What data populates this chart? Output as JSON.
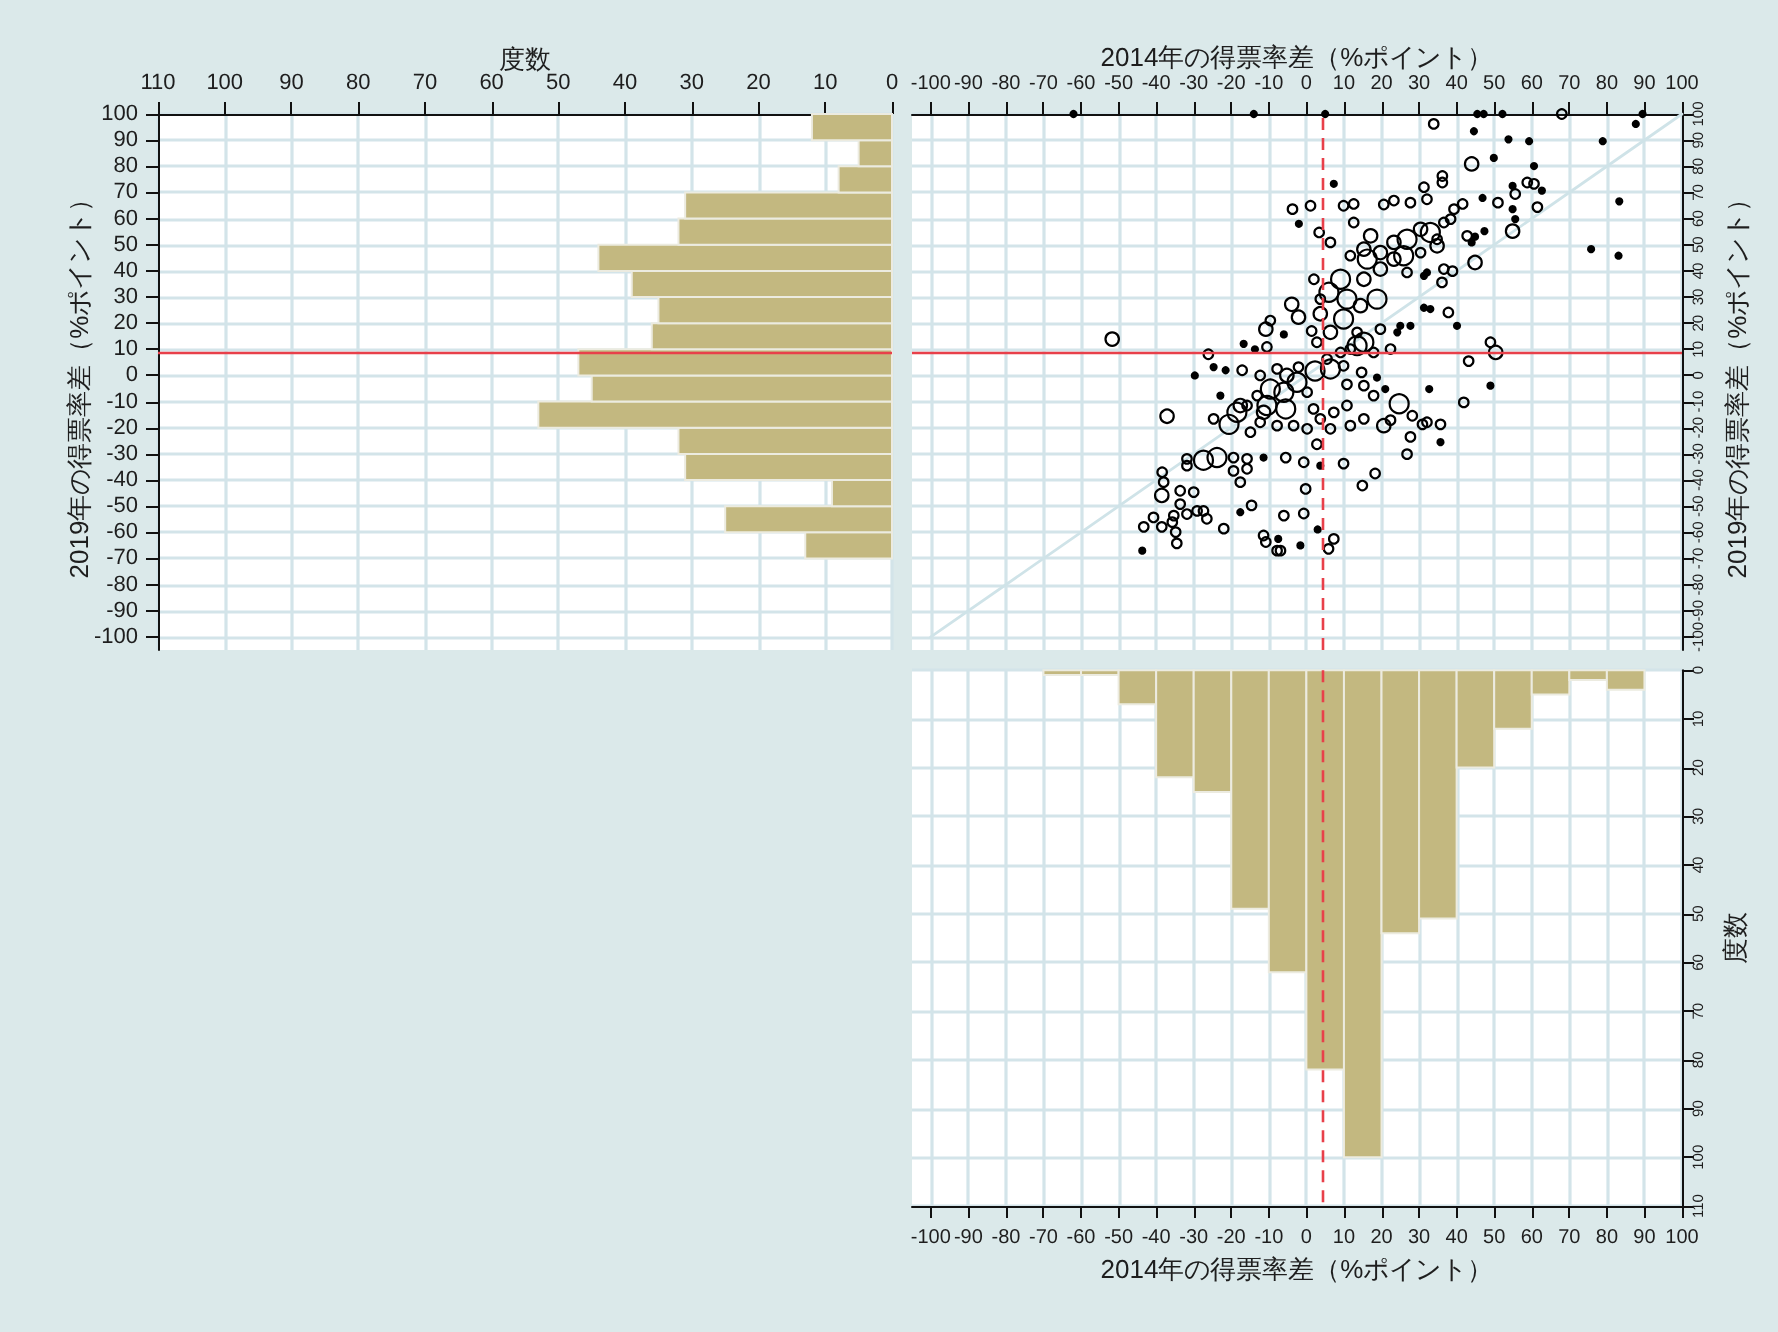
{
  "chart_data": [
    {
      "type": "histogram",
      "orientation": "horizontal",
      "color": "#c3b880",
      "bins": [
        -70,
        -60,
        -50,
        -40,
        -30,
        -20,
        -10,
        0,
        10,
        20,
        30,
        40,
        50,
        60,
        70,
        80,
        90,
        100
      ],
      "values": [
        13,
        25,
        9,
        31,
        32,
        53,
        45,
        47,
        36,
        35,
        39,
        44,
        32,
        31,
        8,
        5,
        12
      ],
      "xlabel": "度数",
      "ylabel": "2019年の得票率差（%ポイント）",
      "xlim": [
        110,
        0
      ],
      "xticks": [
        110,
        100,
        90,
        80,
        70,
        60,
        50,
        40,
        30,
        20,
        10,
        0
      ],
      "ylim": [
        -105,
        100
      ],
      "yticks": [
        -100,
        -90,
        -80,
        -70,
        -60,
        -50,
        -40,
        -30,
        -20,
        -10,
        0,
        10,
        20,
        30,
        40,
        50,
        60,
        70,
        80,
        90,
        100
      ],
      "grid": true,
      "ref_lines": [
        {
          "axis": "y",
          "value": 8.5,
          "color": "#e8404a"
        }
      ]
    },
    {
      "type": "bubble",
      "xlabel": "2014年の得票率差（%ポイント）",
      "ylabel": "2019年の得票率差（%ポイント）",
      "xlim": [
        -105,
        100
      ],
      "xticks": [
        -100,
        -90,
        -80,
        -70,
        -60,
        -50,
        -40,
        -30,
        -20,
        -10,
        0,
        10,
        20,
        30,
        40,
        50,
        60,
        70,
        80,
        90,
        100
      ],
      "ylim": [
        -105,
        100
      ],
      "yticks": [
        -100,
        -90,
        -80,
        -70,
        -60,
        -50,
        -40,
        -30,
        -20,
        -10,
        0,
        10,
        20,
        30,
        40,
        50,
        60,
        70,
        80,
        90,
        100
      ],
      "grid": true,
      "ref_lines": [
        {
          "axis": "y",
          "value": 8.5,
          "color": "#e8404a"
        },
        {
          "axis": "x",
          "value": 4.3,
          "color": "#e8404a",
          "line_style": "dashed"
        }
      ],
      "series": [
        {
          "type": "line",
          "color": "#cfe3e8",
          "x": [
            -100,
            100
          ],
          "values": [
            -100,
            100
          ]
        },
        {
          "color": "#000000",
          "marker": "circle",
          "x": [
            -14,
            -62,
            5,
            7.3,
            -3.7,
            1.1,
            -2,
            3.4,
            6.4,
            2,
            6,
            3.7,
            -3.9,
            -2.1,
            -10.8,
            -6,
            -9.6,
            1.4,
            2.8,
            -51.7,
            -26.1,
            -16.7,
            -13.7,
            -10.5,
            -29.7,
            -24.7,
            -21.5,
            -17.1,
            -12.3,
            -7.8,
            -5.2,
            -2.1,
            2.3,
            5.5,
            -22.9,
            -17.6,
            -13.1,
            -9.6,
            -6,
            -2.5,
            0.2,
            -5.5,
            -10.5,
            -12.3,
            -20.6,
            -37.1,
            -24.7,
            -7.8,
            -3.4,
            0.2,
            -14.9,
            -23.8,
            -27.4,
            -31.8,
            -19.4,
            -15.8,
            -11.4,
            -5.5,
            -31.8,
            -19.4,
            -15.8,
            -0.7,
            3.7,
            -38.4,
            -38,
            -38.5,
            -33.6,
            -30,
            -17.6,
            -0.2,
            -33.6,
            -29.1,
            -40.7,
            -35.3,
            -31.8,
            -27.4,
            -26.5,
            -17.6,
            -14.6,
            -6,
            -0.7,
            -43.3,
            -38.5,
            -35.7,
            -34.8,
            -34.5,
            -43.7,
            -22,
            -11.4,
            -10.8,
            -7.8,
            -6.9,
            -1.6,
            -7.5,
            3,
            7.3,
            -18.5,
            -11.4,
            -15.8,
            45.5,
            47.2,
            52.2,
            68,
            89.5,
            33.9,
            87.7,
            44.6,
            53.8,
            59.3,
            78.9,
            44,
            49.9,
            60.6,
            36.2,
            36.2,
            31.3,
            9.9,
            12.6,
            20.6,
            23.3,
            27.7,
            32.1,
            41.6,
            46.9,
            51,
            54.9,
            55.6,
            58.8,
            60.6,
            62.7,
            54.9,
            61.5,
            55.6,
            54.9,
            47.4,
            44.9,
            44,
            44.9,
            75.8,
            83.1,
            83.3,
            12.6,
            17.1,
            15.3,
            11.7,
            16.2,
            19.7,
            23.3,
            26.8,
            30.4,
            33,
            36.6,
            38.4,
            39.3,
            34.8,
            30.4,
            25.9,
            23.3,
            19.7,
            26.8,
            32.1,
            36.6,
            38.9,
            36.1,
            31.3,
            33,
            37.8,
            40.1,
            9.1,
            10.8,
            15.3,
            18.8,
            14.4,
            9.9,
            6.4,
            3.7,
            13.5,
            19.7,
            24.2,
            27.7,
            13.5,
            15.3,
            17.9,
            22.4,
            11.7,
            9.1,
            6.4,
            9.9,
            14.7,
            18.8,
            10.8,
            15.3,
            21,
            17.9,
            24.7,
            28.2,
            32.1,
            35.7,
            27.7,
            26.8,
            35.7,
            15.3,
            11.7,
            20.6,
            22.4,
            7.3,
            10.8,
            1.9,
            3.7,
            6.4,
            2.8,
            9.9,
            18.3,
            14.9,
            5.9,
            32.7,
            41.9,
            43.2,
            50.4,
            49,
            49,
            30.9,
            25,
            31.3,
            34.8,
            42.8
          ],
          "values": [
            100,
            100,
            100,
            73.3,
            63.6,
            64.9,
            58,
            54.7,
            50.9,
            36.8,
            31.8,
            29.2,
            27.2,
            22.3,
            17.7,
            15.7,
            21,
            17,
            12.7,
            13.9,
            8.1,
            12.1,
            10,
            10.9,
            0,
            3.2,
            2,
            2,
            0,
            2.5,
            0,
            3.2,
            1.7,
            6.3,
            -7.7,
            -11.5,
            -7.7,
            -5.2,
            -6.4,
            -2.6,
            -6.4,
            -12.8,
            -11.5,
            -17.9,
            -18.7,
            -15.6,
            -16.6,
            -19.2,
            -19.2,
            -20.4,
            -21.7,
            -31.4,
            -32.4,
            -31.9,
            -31.4,
            -31.9,
            -31.4,
            -31.4,
            -34.5,
            -36.5,
            -35.7,
            -33.2,
            -34.5,
            -37,
            -40.8,
            -45.9,
            -44.1,
            -44.6,
            -40.8,
            -43.4,
            -49.2,
            -51.8,
            -54.3,
            -53.6,
            -53,
            -51.8,
            -54.8,
            -52.3,
            -49.7,
            -53.6,
            -52.8,
            -57.9,
            -57.9,
            -56.1,
            -59.9,
            -64.2,
            -67,
            -58.6,
            -61.2,
            -63.7,
            -67,
            -67,
            -65,
            -62.5,
            -58.9,
            -62.5,
            -14.1,
            -14.1,
            -11.5,
            100,
            100,
            100,
            100,
            100,
            96.2,
            96.2,
            93.4,
            90.3,
            89.6,
            89.6,
            80.9,
            83.2,
            80.1,
            76.3,
            73.8,
            72,
            64.9,
            65.6,
            65.4,
            66.9,
            66.1,
            67.4,
            65.6,
            67.9,
            66.1,
            72.5,
            69.4,
            73.8,
            73.3,
            70.7,
            63.6,
            64.4,
            59.8,
            55.2,
            55.2,
            53.1,
            50.9,
            43.2,
            48.3,
            45.8,
            66.6,
            58.5,
            53.4,
            48.3,
            45.8,
            44.5,
            47,
            50.9,
            52.1,
            55.9,
            54.7,
            58.5,
            59.8,
            63.6,
            49.6,
            47,
            45.8,
            44.5,
            40.7,
            39.4,
            39.4,
            40.7,
            39.9,
            35.6,
            25.9,
            25.4,
            24.1,
            19,
            36.8,
            29.2,
            36.8,
            29.2,
            26.7,
            21.6,
            16.5,
            23.6,
            16.5,
            17.7,
            16.5,
            19,
            11.4,
            12.7,
            8.8,
            10.1,
            10.1,
            8.8,
            2.5,
            3.7,
            1.2,
            -0.8,
            -3.4,
            -3.9,
            -5.2,
            -7.7,
            -10.8,
            -15.4,
            -17.9,
            -18.7,
            -23.5,
            -30.1,
            -25.5,
            -16.6,
            -19.2,
            -19.2,
            -17.1,
            -14.1,
            -11.5,
            -12.8,
            -16.6,
            -20.4,
            -26.3,
            -33.7,
            -37.5,
            -42.1,
            -66.3,
            -5.2,
            -10.3,
            5.5,
            8.8,
            12.7,
            -3.9,
            -18.7,
            19,
            38.1,
            52.1,
            53.4
          ],
          "sizes": [
            0.1,
            0.1,
            0.1,
            0.1,
            0.25,
            0.25,
            0.1,
            0.25,
            0.25,
            0.25,
            1,
            0.25,
            0.5,
            0.5,
            0.5,
            0.1,
            0.25,
            0.25,
            0.25,
            0.5,
            0.25,
            0.1,
            0.1,
            0.25,
            0.1,
            0.1,
            0.1,
            0.25,
            0.25,
            0.25,
            0.5,
            0.25,
            1,
            0.25,
            0.1,
            0.5,
            0.25,
            1,
            1,
            1,
            0.25,
            1,
            1,
            0.25,
            1,
            0.5,
            0.25,
            0.25,
            0.25,
            0.25,
            0.25,
            1,
            1,
            0.25,
            0.25,
            0.25,
            0.1,
            0.25,
            0.25,
            0.25,
            0.25,
            0.25,
            0.1,
            0.25,
            0.25,
            0.5,
            0.25,
            0.25,
            0.25,
            0.25,
            0.25,
            0.25,
            0.25,
            0.25,
            0.25,
            0.25,
            0.25,
            0.1,
            0.25,
            0.25,
            0.25,
            0.25,
            0.25,
            0.25,
            0.25,
            0.25,
            0.1,
            0.25,
            0.25,
            0.25,
            0.25,
            0.25,
            0.1,
            0.1,
            0.1,
            0.25,
            1,
            0.5,
            0.25,
            0.1,
            0.1,
            0.1,
            0.25,
            0.1,
            0.25,
            0.1,
            0.1,
            0.1,
            0.1,
            0.1,
            0.5,
            0.1,
            0.1,
            0.25,
            0.25,
            0.25,
            0.25,
            0.25,
            0.25,
            0.25,
            0.25,
            0.25,
            0.25,
            0.1,
            0.25,
            0.1,
            0.25,
            0.25,
            0.25,
            0.1,
            0.1,
            0.25,
            0.1,
            0.5,
            0.1,
            0.1,
            0.1,
            0.5,
            0.1,
            0.1,
            0.1,
            0.25,
            0.5,
            0.5,
            0.25,
            1,
            0.5,
            0.5,
            1,
            0.5,
            1,
            0.25,
            0.25,
            0.25,
            0.5,
            0.25,
            1,
            0.5,
            0.5,
            0.25,
            0.1,
            0.25,
            0.25,
            0.25,
            0.1,
            0.1,
            0.25,
            0.1,
            1,
            1,
            0.5,
            1,
            0.5,
            1,
            0.5,
            0.5,
            0.25,
            0.25,
            0.1,
            0.1,
            1,
            1,
            0.25,
            0.25,
            0.25,
            0.25,
            1,
            0.25,
            0.25,
            0.1,
            0.25,
            0.25,
            0.1,
            0.25,
            1,
            0.25,
            0.25,
            0.25,
            0.25,
            0.25,
            0.1,
            0.25,
            0.25,
            0.5,
            0.25,
            0.25,
            0.25,
            0.25,
            0.25,
            0.25,
            0.25,
            0.25,
            0.25,
            0.25,
            0.25,
            0.1,
            0.25,
            0.25,
            0.5,
            0.25,
            0.1,
            0.25,
            0.1,
            0.1,
            0.25,
            0.25
          ]
        }
      ]
    },
    {
      "type": "histogram",
      "color": "#c3b880",
      "bins": [
        -70,
        -60,
        -50,
        -40,
        -30,
        -20,
        -10,
        0,
        10,
        20,
        30,
        40,
        50,
        60,
        70,
        80,
        90
      ],
      "values": [
        1,
        1,
        7,
        22,
        25,
        49,
        62,
        82,
        100,
        54,
        51,
        20,
        12,
        5,
        2,
        4
      ],
      "xlabel": "2014年の得票率差（%ポイント）",
      "ylabel": "度数",
      "xlim": [
        -105,
        100
      ],
      "xticks": [
        -100,
        -90,
        -80,
        -70,
        -60,
        -50,
        -40,
        -30,
        -20,
        -10,
        0,
        10,
        20,
        30,
        40,
        50,
        60,
        70,
        80,
        90,
        100
      ],
      "ylim": [
        110,
        0
      ],
      "yticks": [
        0,
        10,
        20,
        30,
        40,
        50,
        60,
        70,
        80,
        90,
        100,
        110
      ],
      "grid": true,
      "ref_lines": [
        {
          "axis": "x",
          "value": 4.3,
          "color": "#e8404a",
          "line_style": "dashed"
        }
      ]
    }
  ]
}
